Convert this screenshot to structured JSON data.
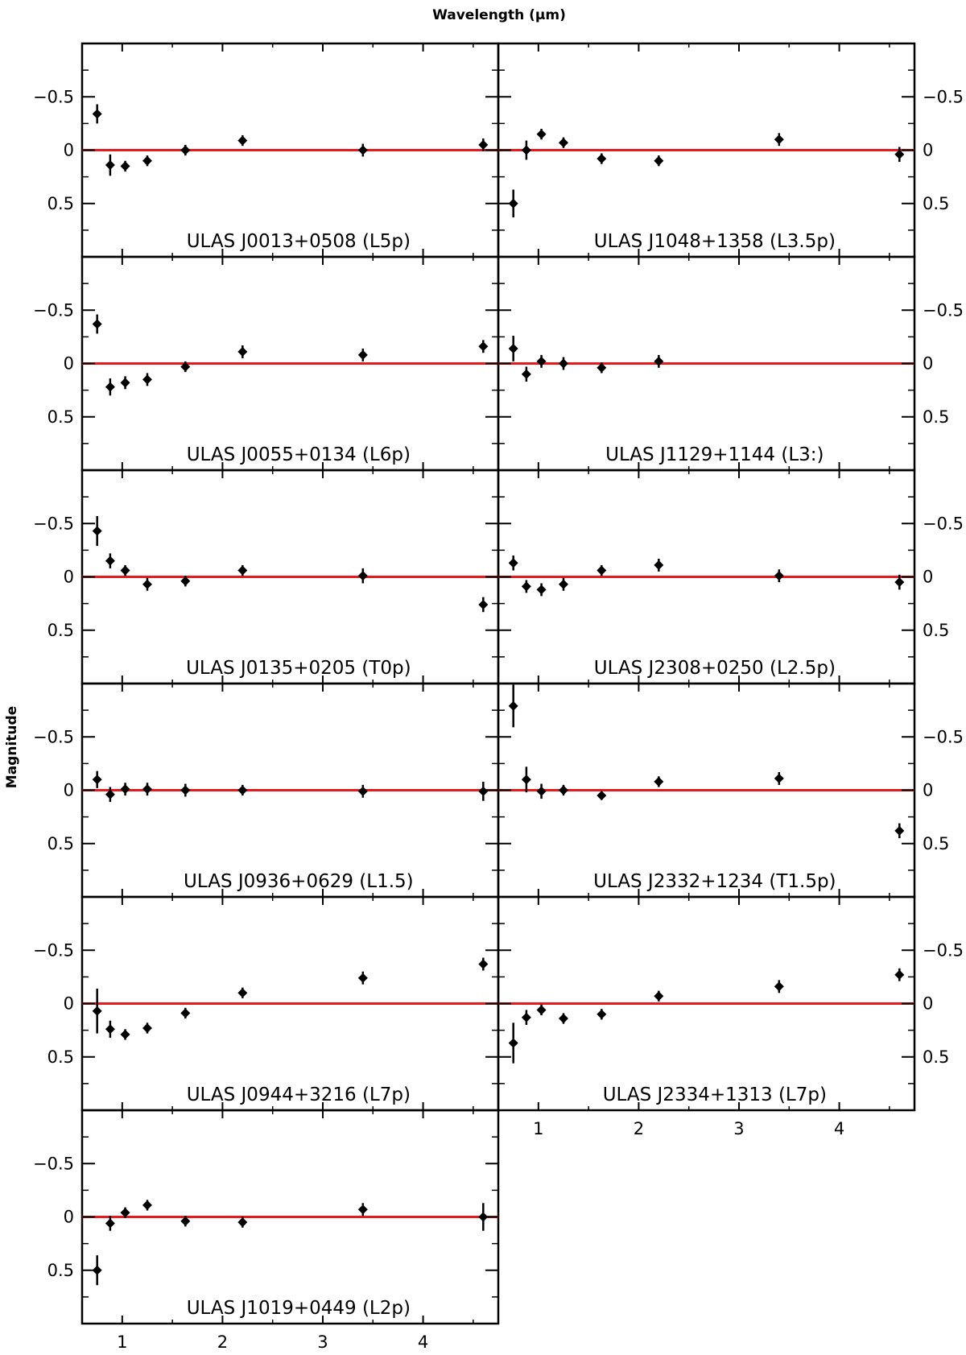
{
  "figure": {
    "xlabel": "Wavelength (μm)",
    "ylabel": "Magnitude",
    "reference_line_color": "#e41a1c",
    "marker_color": "#000000"
  },
  "chart_data": [
    {
      "type": "scatter",
      "label": "ULAS J0013+0508 (L5p)",
      "ylim": [
        1.0,
        -1.0
      ],
      "xlim": [
        0.6,
        4.75
      ],
      "points": [
        {
          "x": 0.75,
          "y": -0.34,
          "err": 0.09
        },
        {
          "x": 0.88,
          "y": 0.14,
          "err": 0.1
        },
        {
          "x": 1.03,
          "y": 0.15,
          "err": 0.05
        },
        {
          "x": 1.25,
          "y": 0.1,
          "err": 0.05
        },
        {
          "x": 1.63,
          "y": 0.0,
          "err": 0.05
        },
        {
          "x": 2.2,
          "y": -0.09,
          "err": 0.05
        },
        {
          "x": 3.4,
          "y": 0.0,
          "err": 0.06
        },
        {
          "x": 4.6,
          "y": -0.05,
          "err": 0.06
        }
      ]
    },
    {
      "type": "scatter",
      "label": "ULAS J1048+1358 (L3.5p)",
      "ylim": [
        1.0,
        -1.0
      ],
      "xlim": [
        0.6,
        4.75
      ],
      "points": [
        {
          "x": 0.75,
          "y": 0.5,
          "err": 0.13
        },
        {
          "x": 0.88,
          "y": 0.0,
          "err": 0.09
        },
        {
          "x": 1.03,
          "y": -0.15,
          "err": 0.05
        },
        {
          "x": 1.25,
          "y": -0.07,
          "err": 0.05
        },
        {
          "x": 1.63,
          "y": 0.08,
          "err": 0.05
        },
        {
          "x": 2.2,
          "y": 0.1,
          "err": 0.05
        },
        {
          "x": 3.4,
          "y": -0.1,
          "err": 0.06
        },
        {
          "x": 4.6,
          "y": 0.04,
          "err": 0.07
        }
      ]
    },
    {
      "type": "scatter",
      "label": "ULAS J0055+0134 (L6p)",
      "ylim": [
        1.0,
        -1.0
      ],
      "xlim": [
        0.6,
        4.75
      ],
      "points": [
        {
          "x": 0.75,
          "y": -0.37,
          "err": 0.09
        },
        {
          "x": 0.88,
          "y": 0.22,
          "err": 0.08
        },
        {
          "x": 1.03,
          "y": 0.18,
          "err": 0.06
        },
        {
          "x": 1.25,
          "y": 0.15,
          "err": 0.06
        },
        {
          "x": 1.63,
          "y": 0.03,
          "err": 0.05
        },
        {
          "x": 2.2,
          "y": -0.11,
          "err": 0.06
        },
        {
          "x": 3.4,
          "y": -0.08,
          "err": 0.06
        },
        {
          "x": 4.6,
          "y": -0.16,
          "err": 0.06
        }
      ]
    },
    {
      "type": "scatter",
      "label": "ULAS J1129+1144 (L3:)",
      "ylim": [
        1.0,
        -1.0
      ],
      "xlim": [
        0.6,
        4.75
      ],
      "points": [
        {
          "x": 0.75,
          "y": -0.14,
          "err": 0.12
        },
        {
          "x": 0.88,
          "y": 0.1,
          "err": 0.07
        },
        {
          "x": 1.03,
          "y": -0.02,
          "err": 0.06
        },
        {
          "x": 1.25,
          "y": 0.0,
          "err": 0.06
        },
        {
          "x": 1.63,
          "y": 0.04,
          "err": 0.05
        },
        {
          "x": 2.2,
          "y": -0.02,
          "err": 0.06
        }
      ]
    },
    {
      "type": "scatter",
      "label": "ULAS J0135+0205 (T0p)",
      "ylim": [
        1.0,
        -1.0
      ],
      "xlim": [
        0.6,
        4.75
      ],
      "points": [
        {
          "x": 0.75,
          "y": -0.43,
          "err": 0.14
        },
        {
          "x": 0.88,
          "y": -0.15,
          "err": 0.07
        },
        {
          "x": 1.03,
          "y": -0.06,
          "err": 0.05
        },
        {
          "x": 1.25,
          "y": 0.07,
          "err": 0.06
        },
        {
          "x": 1.63,
          "y": 0.04,
          "err": 0.05
        },
        {
          "x": 2.2,
          "y": -0.06,
          "err": 0.05
        },
        {
          "x": 3.4,
          "y": -0.01,
          "err": 0.07
        },
        {
          "x": 4.6,
          "y": 0.26,
          "err": 0.07
        }
      ]
    },
    {
      "type": "scatter",
      "label": "ULAS J2308+0250 (L2.5p)",
      "ylim": [
        1.0,
        -1.0
      ],
      "xlim": [
        0.6,
        4.75
      ],
      "points": [
        {
          "x": 0.75,
          "y": -0.13,
          "err": 0.07
        },
        {
          "x": 0.88,
          "y": 0.09,
          "err": 0.06
        },
        {
          "x": 1.03,
          "y": 0.12,
          "err": 0.06
        },
        {
          "x": 1.25,
          "y": 0.07,
          "err": 0.06
        },
        {
          "x": 1.63,
          "y": -0.06,
          "err": 0.05
        },
        {
          "x": 2.2,
          "y": -0.11,
          "err": 0.06
        },
        {
          "x": 3.4,
          "y": -0.01,
          "err": 0.06
        },
        {
          "x": 4.6,
          "y": 0.05,
          "err": 0.07
        }
      ]
    },
    {
      "type": "scatter",
      "label": "ULAS J0936+0629 (L1.5)",
      "ylim": [
        1.0,
        -1.0
      ],
      "xlim": [
        0.6,
        4.75
      ],
      "points": [
        {
          "x": 0.75,
          "y": -0.1,
          "err": 0.08
        },
        {
          "x": 0.88,
          "y": 0.04,
          "err": 0.07
        },
        {
          "x": 1.03,
          "y": -0.01,
          "err": 0.06
        },
        {
          "x": 1.25,
          "y": -0.01,
          "err": 0.06
        },
        {
          "x": 1.63,
          "y": 0.0,
          "err": 0.06
        },
        {
          "x": 2.2,
          "y": 0.0,
          "err": 0.05
        },
        {
          "x": 3.4,
          "y": 0.01,
          "err": 0.06
        },
        {
          "x": 4.6,
          "y": 0.01,
          "err": 0.09
        }
      ]
    },
    {
      "type": "scatter",
      "label": "ULAS J2332+1234 (T1.5p)",
      "ylim": [
        1.0,
        -1.0
      ],
      "xlim": [
        0.6,
        4.75
      ],
      "points": [
        {
          "x": 0.75,
          "y": -0.79,
          "err": 0.2
        },
        {
          "x": 0.88,
          "y": -0.1,
          "err": 0.12
        },
        {
          "x": 1.03,
          "y": 0.01,
          "err": 0.07
        },
        {
          "x": 1.25,
          "y": 0.0,
          "err": 0.05
        },
        {
          "x": 1.63,
          "y": 0.05,
          "err": 0.04
        },
        {
          "x": 2.2,
          "y": -0.08,
          "err": 0.05
        },
        {
          "x": 3.4,
          "y": -0.11,
          "err": 0.06
        },
        {
          "x": 4.6,
          "y": 0.38,
          "err": 0.07
        }
      ]
    },
    {
      "type": "scatter",
      "label": "ULAS J0944+3216 (L7p)",
      "ylim": [
        1.0,
        -1.0
      ],
      "xlim": [
        0.6,
        4.75
      ],
      "points": [
        {
          "x": 0.75,
          "y": 0.07,
          "err": 0.21
        },
        {
          "x": 0.88,
          "y": 0.24,
          "err": 0.08
        },
        {
          "x": 1.03,
          "y": 0.29,
          "err": 0.05
        },
        {
          "x": 1.25,
          "y": 0.23,
          "err": 0.05
        },
        {
          "x": 1.63,
          "y": 0.09,
          "err": 0.05
        },
        {
          "x": 2.2,
          "y": -0.1,
          "err": 0.05
        },
        {
          "x": 3.4,
          "y": -0.24,
          "err": 0.06
        },
        {
          "x": 4.6,
          "y": -0.37,
          "err": 0.06
        }
      ]
    },
    {
      "type": "scatter",
      "label": "ULAS J2334+1313 (L7p)",
      "ylim": [
        1.0,
        -1.0
      ],
      "xlim": [
        0.6,
        4.75
      ],
      "points": [
        {
          "x": 0.75,
          "y": 0.37,
          "err": 0.19
        },
        {
          "x": 0.88,
          "y": 0.13,
          "err": 0.07
        },
        {
          "x": 1.03,
          "y": 0.06,
          "err": 0.05
        },
        {
          "x": 1.25,
          "y": 0.14,
          "err": 0.05
        },
        {
          "x": 1.63,
          "y": 0.1,
          "err": 0.05
        },
        {
          "x": 2.2,
          "y": -0.07,
          "err": 0.05
        },
        {
          "x": 3.4,
          "y": -0.16,
          "err": 0.06
        },
        {
          "x": 4.6,
          "y": -0.27,
          "err": 0.06
        }
      ]
    },
    {
      "type": "scatter",
      "label": "ULAS J1019+0449 (L2p)",
      "ylim": [
        1.0,
        -1.0
      ],
      "xlim": [
        0.6,
        4.75
      ],
      "points": [
        {
          "x": 0.75,
          "y": 0.5,
          "err": 0.14
        },
        {
          "x": 0.88,
          "y": 0.06,
          "err": 0.07
        },
        {
          "x": 1.03,
          "y": -0.04,
          "err": 0.05
        },
        {
          "x": 1.25,
          "y": -0.11,
          "err": 0.05
        },
        {
          "x": 1.63,
          "y": 0.04,
          "err": 0.05
        },
        {
          "x": 2.2,
          "y": 0.05,
          "err": 0.05
        },
        {
          "x": 3.4,
          "y": -0.07,
          "err": 0.06
        },
        {
          "x": 4.6,
          "y": 0.0,
          "err": 0.13
        }
      ]
    }
  ],
  "y_ticks": [
    {
      "value": -0.5,
      "label": "−0.5"
    },
    {
      "value": 0,
      "label": "0"
    },
    {
      "value": 0.5,
      "label": "0.5"
    }
  ],
  "x_ticks": [
    {
      "value": 1,
      "label": "1"
    },
    {
      "value": 2,
      "label": "2"
    },
    {
      "value": 3,
      "label": "3"
    },
    {
      "value": 4,
      "label": "4"
    }
  ]
}
